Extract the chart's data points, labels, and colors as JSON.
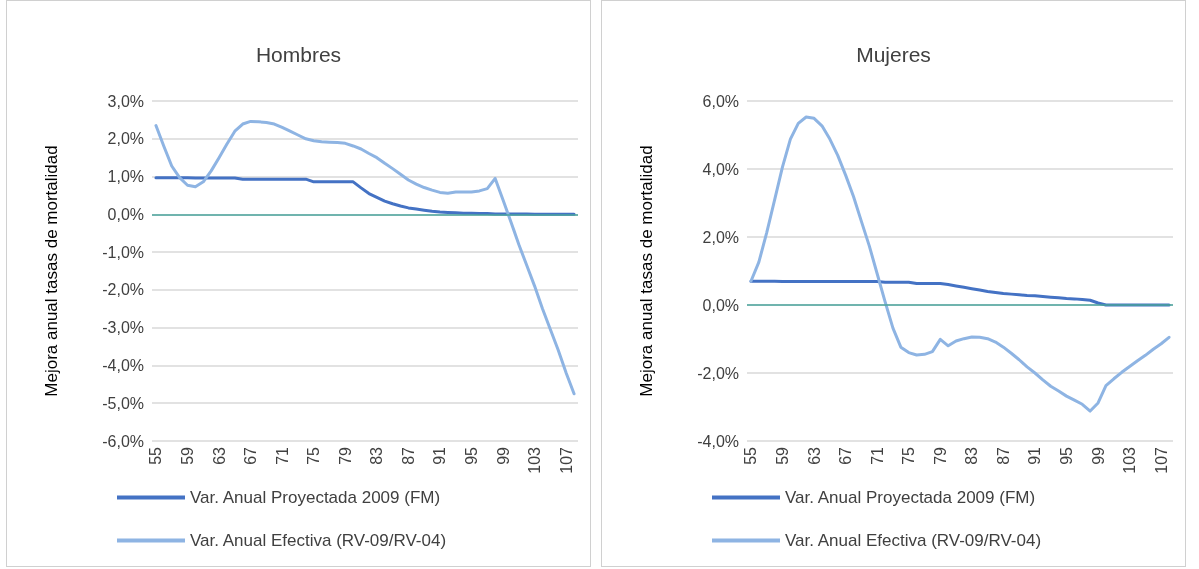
{
  "chart_data": [
    {
      "type": "line",
      "title": "Hombres",
      "ylabel": "Mejora anual tasas de mortalidad",
      "categories": [
        "55",
        null,
        null,
        null,
        "59",
        null,
        null,
        null,
        "63",
        null,
        null,
        null,
        "67",
        null,
        null,
        null,
        "71",
        null,
        null,
        null,
        "75",
        null,
        null,
        null,
        "79",
        null,
        null,
        null,
        "83",
        null,
        null,
        null,
        "87",
        null,
        null,
        null,
        "91",
        null,
        null,
        null,
        "95",
        null,
        null,
        null,
        "99",
        null,
        null,
        null,
        "103",
        null,
        null,
        null,
        "107",
        null
      ],
      "series": [
        {
          "name": "Var. Anual Proyectada 2009 (FM)",
          "color": "#4472c4",
          "values": [
            0.97,
            0.97,
            0.97,
            0.97,
            0.97,
            0.96,
            0.96,
            0.96,
            0.96,
            0.96,
            0.96,
            0.93,
            0.93,
            0.93,
            0.93,
            0.93,
            0.93,
            0.93,
            0.93,
            0.93,
            0.86,
            0.86,
            0.86,
            0.86,
            0.86,
            0.86,
            0.7,
            0.55,
            0.45,
            0.35,
            0.28,
            0.22,
            0.17,
            0.14,
            0.11,
            0.08,
            0.06,
            0.05,
            0.04,
            0.03,
            0.03,
            0.02,
            0.02,
            0.01,
            0.01,
            0.01,
            0.01,
            0.01,
            0.0,
            0.0,
            0.0,
            0.0,
            0.0,
            0.0
          ]
        },
        {
          "name": "Var. Anual Efectiva (RV-09/RV-04)",
          "color": "#8eb4e3",
          "values": [
            2.35,
            1.8,
            1.28,
            0.97,
            0.77,
            0.73,
            0.86,
            1.15,
            1.5,
            1.86,
            2.2,
            2.39,
            2.46,
            2.45,
            2.43,
            2.39,
            2.3,
            2.2,
            2.1,
            2.0,
            1.95,
            1.92,
            1.91,
            1.9,
            1.88,
            1.81,
            1.73,
            1.61,
            1.5,
            1.35,
            1.21,
            1.06,
            0.91,
            0.8,
            0.71,
            0.64,
            0.58,
            0.56,
            0.59,
            0.59,
            0.59,
            0.62,
            0.68,
            0.95,
            0.38,
            -0.2,
            -0.8,
            -1.35,
            -1.9,
            -2.5,
            -3.05,
            -3.6,
            -4.2,
            -4.75
          ]
        }
      ],
      "ylim": [
        -6,
        3
      ],
      "yticks": [
        {
          "value": -6,
          "label": "-6,0%"
        },
        {
          "value": -5,
          "label": "-5,0%"
        },
        {
          "value": -4,
          "label": "-4,0%"
        },
        {
          "value": -3,
          "label": "-3,0%"
        },
        {
          "value": -2,
          "label": "-2,0%"
        },
        {
          "value": -1,
          "label": "-1,0%"
        },
        {
          "value": 0,
          "label": "0,0%"
        },
        {
          "value": 1,
          "label": "1,0%"
        },
        {
          "value": 2,
          "label": "2,0%"
        },
        {
          "value": 3,
          "label": "3,0%"
        }
      ],
      "ref_lines": [
        {
          "axis": "y",
          "value": 0,
          "color": "#4aa59c"
        }
      ],
      "grid": "y",
      "legend": "bottom",
      "marker": "none"
    },
    {
      "type": "line",
      "title": "Mujeres",
      "ylabel": "Mejora anual tasas de mortalidad",
      "categories": [
        "55",
        null,
        null,
        null,
        "59",
        null,
        null,
        null,
        "63",
        null,
        null,
        null,
        "67",
        null,
        null,
        null,
        "71",
        null,
        null,
        null,
        "75",
        null,
        null,
        null,
        "79",
        null,
        null,
        null,
        "83",
        null,
        null,
        null,
        "87",
        null,
        null,
        null,
        "91",
        null,
        null,
        null,
        "95",
        null,
        null,
        null,
        "99",
        null,
        null,
        null,
        "103",
        null,
        null,
        null,
        "107",
        null
      ],
      "series": [
        {
          "name": "Var. Anual Proyectada 2009 (FM)",
          "color": "#4472c4",
          "values": [
            0.7,
            0.7,
            0.7,
            0.7,
            0.69,
            0.69,
            0.69,
            0.69,
            0.69,
            0.69,
            0.69,
            0.69,
            0.69,
            0.69,
            0.69,
            0.69,
            0.69,
            0.67,
            0.67,
            0.67,
            0.67,
            0.63,
            0.63,
            0.63,
            0.63,
            0.6,
            0.56,
            0.52,
            0.48,
            0.44,
            0.4,
            0.37,
            0.34,
            0.32,
            0.3,
            0.28,
            0.27,
            0.25,
            0.23,
            0.21,
            0.19,
            0.18,
            0.16,
            0.14,
            0.06,
            0.0,
            0.0,
            0.0,
            0.0,
            0.0,
            0.0,
            0.0,
            0.0,
            0.0
          ]
        },
        {
          "name": "Var. Anual Efectiva (RV-09/RV-04)",
          "color": "#8eb4e3",
          "values": [
            0.7,
            1.26,
            2.13,
            3.09,
            4.06,
            4.88,
            5.34,
            5.53,
            5.49,
            5.27,
            4.88,
            4.4,
            3.82,
            3.19,
            2.46,
            1.74,
            0.92,
            0.1,
            -0.68,
            -1.24,
            -1.4,
            -1.47,
            -1.45,
            -1.37,
            -1.01,
            -1.2,
            -1.06,
            -0.99,
            -0.94,
            -0.95,
            -0.99,
            -1.09,
            -1.24,
            -1.42,
            -1.61,
            -1.82,
            -2.0,
            -2.2,
            -2.39,
            -2.53,
            -2.68,
            -2.8,
            -2.92,
            -3.12,
            -2.88,
            -2.37,
            -2.17,
            -1.98,
            -1.81,
            -1.64,
            -1.48,
            -1.3,
            -1.14,
            -0.95
          ]
        }
      ],
      "ylim": [
        -4,
        6
      ],
      "yticks": [
        {
          "value": -4,
          "label": "-4,0%"
        },
        {
          "value": -2,
          "label": "-2,0%"
        },
        {
          "value": 0,
          "label": "0,0%"
        },
        {
          "value": 2,
          "label": "2,0%"
        },
        {
          "value": 4,
          "label": "4,0%"
        },
        {
          "value": 6,
          "label": "6,0%"
        }
      ],
      "ref_lines": [
        {
          "axis": "y",
          "value": 0,
          "color": "#4aa59c"
        }
      ],
      "grid": "y",
      "legend": "bottom",
      "marker": "none"
    }
  ]
}
